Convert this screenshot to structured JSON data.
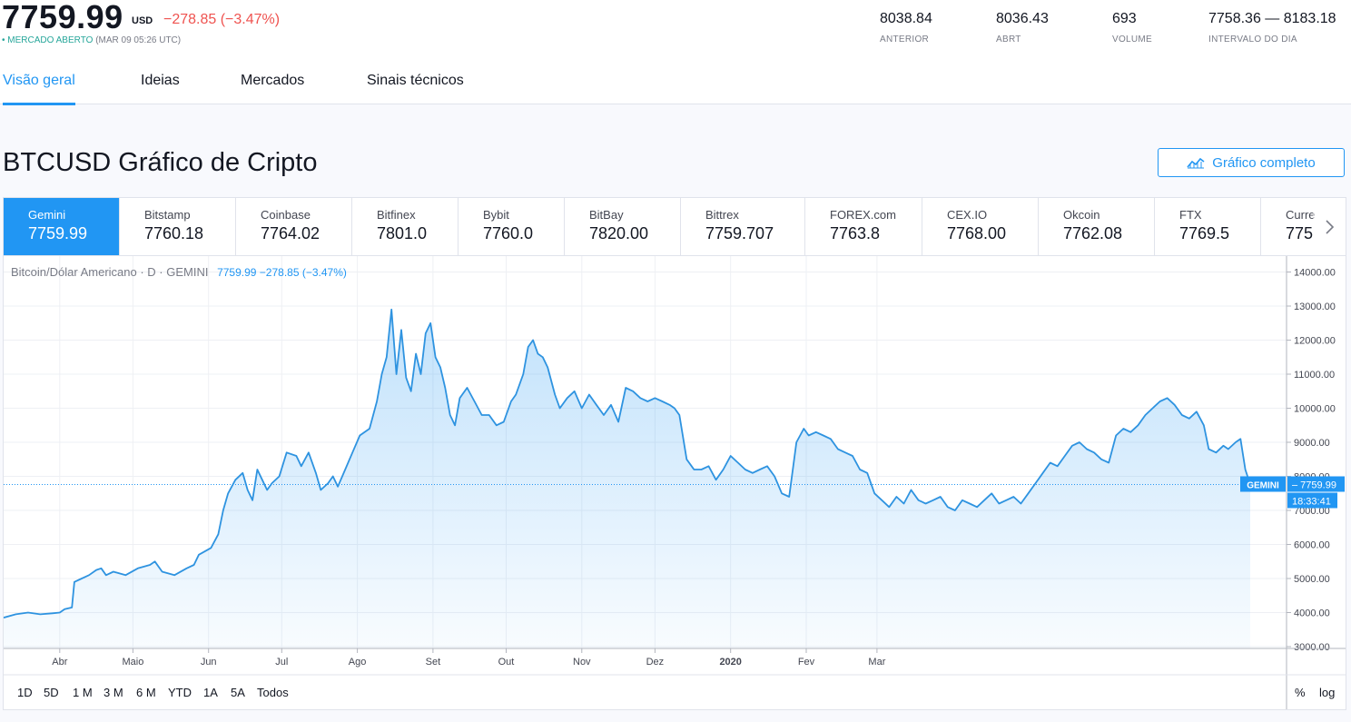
{
  "header": {
    "price": "7759.99",
    "currency": "USD",
    "change": "−278.85 (−3.47%)",
    "status_dot": "•",
    "status_open": "MERCADO ABERTO",
    "status_time": "(MAR 09 05:26 UTC)",
    "stats": [
      {
        "value": "8038.84",
        "label": "ANTERIOR"
      },
      {
        "value": "8036.43",
        "label": "ABRT"
      },
      {
        "value": "693",
        "label": "VOLUME"
      },
      {
        "value": "7758.36 — 8183.18",
        "label": "INTERVALO DO DIA"
      }
    ]
  },
  "tabs": [
    {
      "label": "Visão geral",
      "active": true
    },
    {
      "label": "Ideias"
    },
    {
      "label": "Mercados"
    },
    {
      "label": "Sinais técnicos"
    }
  ],
  "page_title": "BTCUSD Gráfico de Cripto",
  "full_chart_button": "Gráfico completo",
  "exchanges": [
    {
      "name": "Gemini",
      "price": "7759.99",
      "active": true
    },
    {
      "name": "Bitstamp",
      "price": "7760.18"
    },
    {
      "name": "Coinbase",
      "price": "7764.02"
    },
    {
      "name": "Bitfinex",
      "price": "7801.0"
    },
    {
      "name": "Bybit",
      "price": "7760.0"
    },
    {
      "name": "BitBay",
      "price": "7820.00"
    },
    {
      "name": "Bittrex",
      "price": "7759.707"
    },
    {
      "name": "FOREX.com",
      "price": "7763.8"
    },
    {
      "name": "CEX.IO",
      "price": "7768.00"
    },
    {
      "name": "Okcoin",
      "price": "7762.08"
    },
    {
      "name": "FTX",
      "price": "7769.5"
    },
    {
      "name": "Curre",
      "price": "775"
    }
  ],
  "chart_legend": {
    "symbol": "Bitcoin/Dólar Americano · D · GEMINI",
    "values": "7759.99  −278.85 (−3.47%)"
  },
  "price_tag": {
    "label": "GEMINI",
    "value": "7759.99",
    "countdown": "18:33:41"
  },
  "colors": {
    "accent": "#2196f3",
    "down": "#ef5350",
    "open": "#26a69a",
    "line": "#2e93e0"
  },
  "chart_data": {
    "type": "area",
    "x_ticks": [
      "Abr",
      "Maio",
      "Jun",
      "Jul",
      "Ago",
      "Set",
      "Out",
      "Nov",
      "Dez",
      "2020",
      "Fev",
      "Mar"
    ],
    "y_ticks": [
      "14000.00",
      "13000.00",
      "12000.00",
      "11000.00",
      "10000.00",
      "9000.00",
      "8000.00",
      "7000.00",
      "6000.00",
      "5000.00",
      "4000.00",
      "3000.00"
    ],
    "ylim": [
      3000,
      14000
    ],
    "x_unit": "days since 2019-03-09",
    "series": [
      {
        "name": "BTCUSD",
        "points": [
          [
            0,
            3850
          ],
          [
            5,
            3950
          ],
          [
            10,
            4000
          ],
          [
            15,
            3950
          ],
          [
            20,
            3980
          ],
          [
            23,
            4000
          ],
          [
            25,
            4100
          ],
          [
            28,
            4150
          ],
          [
            29,
            4900
          ],
          [
            32,
            5000
          ],
          [
            35,
            5100
          ],
          [
            38,
            5250
          ],
          [
            40,
            5300
          ],
          [
            42,
            5100
          ],
          [
            45,
            5200
          ],
          [
            50,
            5100
          ],
          [
            55,
            5300
          ],
          [
            60,
            5400
          ],
          [
            62,
            5500
          ],
          [
            65,
            5200
          ],
          [
            70,
            5100
          ],
          [
            75,
            5300
          ],
          [
            78,
            5400
          ],
          [
            80,
            5700
          ],
          [
            85,
            5900
          ],
          [
            88,
            6300
          ],
          [
            90,
            7000
          ],
          [
            92,
            7500
          ],
          [
            95,
            7900
          ],
          [
            98,
            8100
          ],
          [
            100,
            7600
          ],
          [
            102,
            7300
          ],
          [
            104,
            8200
          ],
          [
            106,
            7900
          ],
          [
            108,
            7600
          ],
          [
            110,
            7800
          ],
          [
            113,
            8000
          ],
          [
            116,
            8700
          ],
          [
            120,
            8600
          ],
          [
            122,
            8300
          ],
          [
            125,
            8700
          ],
          [
            128,
            8100
          ],
          [
            130,
            7600
          ],
          [
            133,
            7800
          ],
          [
            135,
            8000
          ],
          [
            137,
            7700
          ],
          [
            140,
            8200
          ],
          [
            143,
            8700
          ],
          [
            146,
            9200
          ],
          [
            150,
            9400
          ],
          [
            153,
            10200
          ],
          [
            155,
            11000
          ],
          [
            157,
            11500
          ],
          [
            159,
            12900
          ],
          [
            161,
            11000
          ],
          [
            163,
            12300
          ],
          [
            165,
            10900
          ],
          [
            167,
            10500
          ],
          [
            169,
            11600
          ],
          [
            171,
            11000
          ],
          [
            173,
            12200
          ],
          [
            175,
            12500
          ],
          [
            177,
            11500
          ],
          [
            179,
            11200
          ],
          [
            181,
            10600
          ],
          [
            183,
            9800
          ],
          [
            185,
            9500
          ],
          [
            187,
            10300
          ],
          [
            190,
            10600
          ],
          [
            193,
            10200
          ],
          [
            196,
            9800
          ],
          [
            199,
            9800
          ],
          [
            202,
            9500
          ],
          [
            205,
            9600
          ],
          [
            208,
            10200
          ],
          [
            210,
            10400
          ],
          [
            213,
            11000
          ],
          [
            215,
            11800
          ],
          [
            217,
            12000
          ],
          [
            219,
            11600
          ],
          [
            221,
            11500
          ],
          [
            223,
            11200
          ],
          [
            226,
            10400
          ],
          [
            228,
            10000
          ],
          [
            231,
            10300
          ],
          [
            234,
            10500
          ],
          [
            237,
            10000
          ],
          [
            240,
            10400
          ],
          [
            243,
            10100
          ],
          [
            246,
            9800
          ],
          [
            249,
            10100
          ],
          [
            252,
            9600
          ],
          [
            255,
            10600
          ],
          [
            258,
            10500
          ],
          [
            261,
            10300
          ],
          [
            264,
            10200
          ],
          [
            267,
            10300
          ],
          [
            270,
            10200
          ],
          [
            273,
            10100
          ],
          [
            275,
            10000
          ],
          [
            277,
            9800
          ],
          [
            280,
            8500
          ],
          [
            283,
            8200
          ],
          [
            286,
            8200
          ],
          [
            289,
            8300
          ],
          [
            292,
            7900
          ],
          [
            295,
            8200
          ],
          [
            298,
            8600
          ],
          [
            301,
            8400
          ],
          [
            304,
            8200
          ],
          [
            307,
            8100
          ],
          [
            310,
            8200
          ],
          [
            313,
            8300
          ],
          [
            316,
            8000
          ],
          [
            319,
            7500
          ],
          [
            322,
            7400
          ],
          [
            325,
            9000
          ],
          [
            328,
            9400
          ],
          [
            330,
            9200
          ],
          [
            333,
            9300
          ],
          [
            336,
            9200
          ],
          [
            339,
            9100
          ],
          [
            342,
            8800
          ],
          [
            345,
            8700
          ],
          [
            348,
            8600
          ],
          [
            351,
            8200
          ],
          [
            354,
            8100
          ],
          [
            357,
            7500
          ],
          [
            360,
            7300
          ],
          [
            363,
            7100
          ],
          [
            366,
            7400
          ],
          [
            369,
            7200
          ],
          [
            372,
            7600
          ],
          [
            375,
            7300
          ],
          [
            378,
            7200
          ],
          [
            381,
            7300
          ],
          [
            384,
            7400
          ],
          [
            387,
            7100
          ],
          [
            390,
            7000
          ],
          [
            393,
            7300
          ],
          [
            396,
            7200
          ],
          [
            399,
            7100
          ],
          [
            402,
            7300
          ],
          [
            405,
            7500
          ],
          [
            408,
            7200
          ],
          [
            411,
            7300
          ],
          [
            414,
            7400
          ],
          [
            417,
            7200
          ],
          [
            420,
            7500
          ],
          [
            423,
            7800
          ],
          [
            426,
            8100
          ],
          [
            429,
            8400
          ],
          [
            432,
            8300
          ],
          [
            435,
            8600
          ],
          [
            438,
            8900
          ],
          [
            441,
            9000
          ],
          [
            444,
            8800
          ],
          [
            447,
            8700
          ],
          [
            450,
            8500
          ],
          [
            453,
            8400
          ],
          [
            456,
            9200
          ],
          [
            459,
            9400
          ],
          [
            462,
            9300
          ],
          [
            465,
            9500
          ],
          [
            468,
            9800
          ],
          [
            471,
            10000
          ],
          [
            474,
            10200
          ],
          [
            477,
            10300
          ],
          [
            480,
            10100
          ],
          [
            483,
            9800
          ],
          [
            486,
            9700
          ],
          [
            489,
            9900
          ],
          [
            492,
            9500
          ],
          [
            494,
            8800
          ],
          [
            497,
            8700
          ],
          [
            500,
            8900
          ],
          [
            502,
            8800
          ],
          [
            505,
            9000
          ],
          [
            507,
            9100
          ],
          [
            509,
            8200
          ],
          [
            511,
            7760
          ]
        ]
      }
    ]
  },
  "range_buttons": [
    "1D",
    "5D",
    "1 M",
    "3 M",
    "6 M",
    "YTD",
    "1A",
    "5A",
    "Todos"
  ],
  "scale_options": [
    "%",
    "log"
  ]
}
